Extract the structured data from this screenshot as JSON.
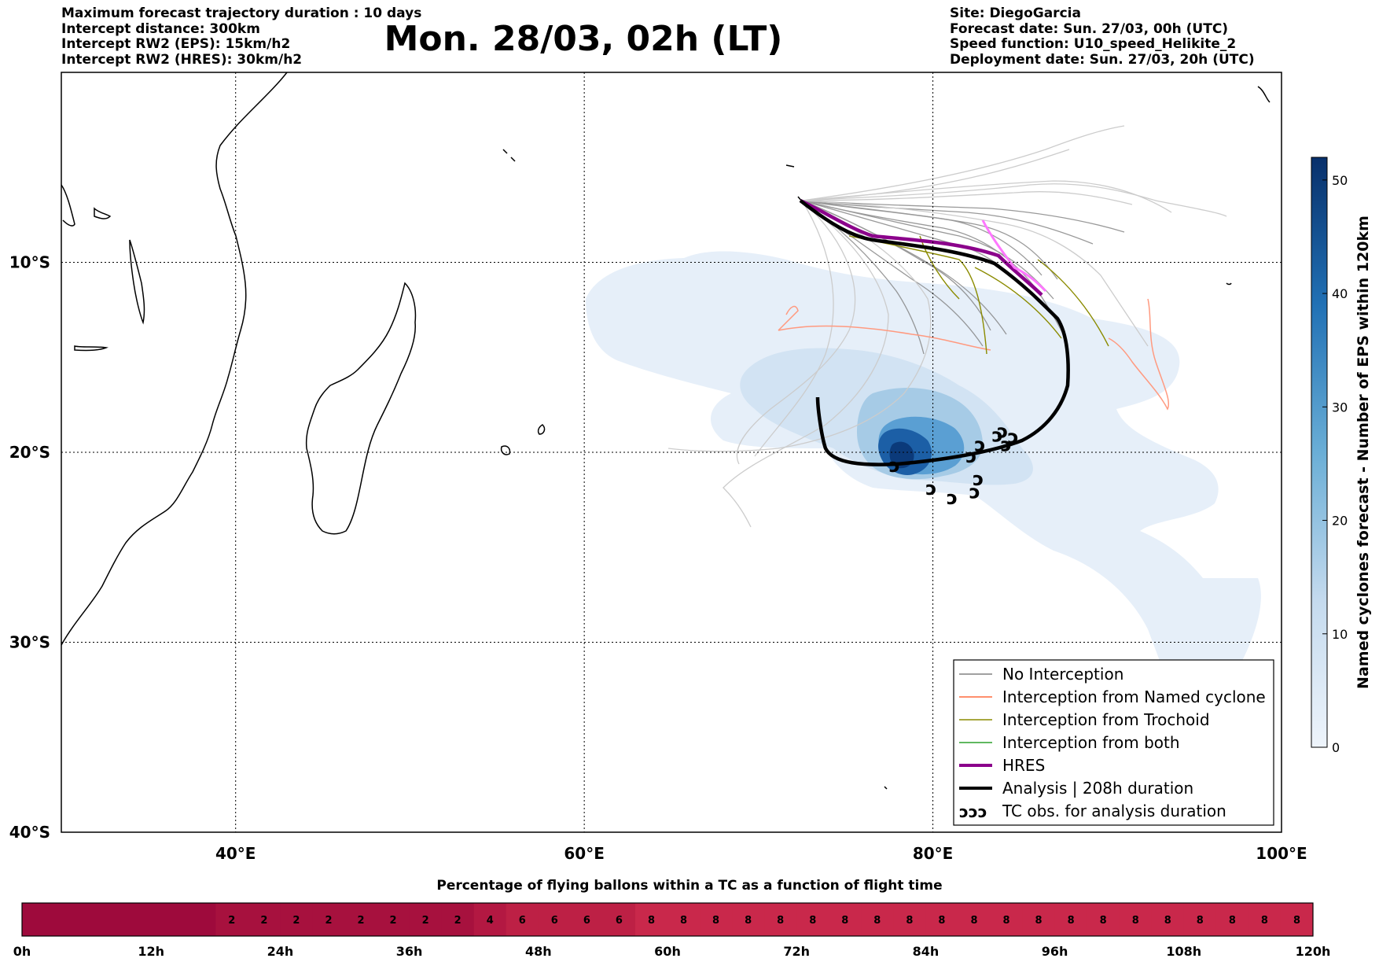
{
  "header_left": [
    "Maximum forecast trajectory duration : 10 days",
    "Intercept distance: 300km",
    "Intercept RW2 (EPS):  15km/h2",
    "Intercept RW2 (HRES): 30km/h2"
  ],
  "title": "Mon. 28/03, 02h (LT)",
  "header_right": [
    "Site: DiegoGarcia",
    "Forecast date: Sun. 27/03, 00h (UTC)",
    "Speed function: U10_speed_Helikite_2",
    "Deployment date: Sun. 27/03, 20h (UTC)"
  ],
  "map": {
    "lon_range": [
      30,
      100
    ],
    "lat_range": [
      -40,
      0
    ],
    "lon_ticks": [
      "40°E",
      "60°E",
      "80°E",
      "100°E"
    ],
    "lat_ticks": [
      "10°S",
      "20°S",
      "30°S",
      "40°S"
    ],
    "gridlines": true,
    "colors": {
      "no_interception": "#808080",
      "named_cyclone": "#ff6a3d",
      "trochoid": "#8b8b00",
      "both": "#2ca02c",
      "hres": "#8b008b",
      "analysis": "#000000"
    },
    "tc_obs_symbol": "ↄ",
    "tc_obs_positions": [
      {
        "lon": 77.8,
        "lat": -20.7
      },
      {
        "lon": 79.9,
        "lat": -21.9
      },
      {
        "lon": 81.1,
        "lat": -22.4
      },
      {
        "lon": 82.4,
        "lat": -22.1
      },
      {
        "lon": 82.6,
        "lat": -21.4
      },
      {
        "lon": 82.2,
        "lat": -20.2
      },
      {
        "lon": 82.7,
        "lat": -19.6
      },
      {
        "lon": 83.7,
        "lat": -19.1
      },
      {
        "lon": 84.2,
        "lat": -19.6
      },
      {
        "lon": 84.6,
        "lat": -19.2
      },
      {
        "lon": 84.0,
        "lat": -18.9
      }
    ]
  },
  "legend": {
    "items": [
      {
        "label": "No Interception",
        "color": "#808080",
        "width": 1.5
      },
      {
        "label": "Interception from Named cyclone",
        "color": "#ff6a3d",
        "width": 1.5
      },
      {
        "label": "Interception from Trochoid",
        "color": "#8b8b00",
        "width": 1.5
      },
      {
        "label": "Interception from both",
        "color": "#2ca02c",
        "width": 1.5
      },
      {
        "label": "HRES",
        "color": "#8b008b",
        "width": 4
      },
      {
        "label": "Analysis | 208h duration",
        "color": "#000000",
        "width": 4
      }
    ],
    "tc_item": {
      "symbol": "ↄↄↄ",
      "label": "TC obs. for analysis duration"
    }
  },
  "colorbar": {
    "label": "Named cyclones forecast - Number of EPS within 120km",
    "min": 0,
    "max": 52,
    "ticks": [
      "0",
      "10",
      "20",
      "30",
      "40",
      "50"
    ],
    "color_low": "#dde9f6",
    "color_high": "#08306b"
  },
  "timebar": {
    "title": "Percentage of flying ballons within a TC as a function of flight time",
    "tick_labels": [
      "0h",
      "12h",
      "24h",
      "36h",
      "48h",
      "60h",
      "72h",
      "84h",
      "96h",
      "108h",
      "120h"
    ],
    "cells": [
      "",
      "",
      "",
      "",
      "",
      "",
      "2",
      "2",
      "2",
      "2",
      "2",
      "2",
      "2",
      "2",
      "4",
      "6",
      "6",
      "6",
      "6",
      "8",
      "8",
      "8",
      "8",
      "8",
      "8",
      "8",
      "8",
      "8",
      "8",
      "8",
      "8",
      "8",
      "8",
      "8",
      "8",
      "8",
      "8",
      "8",
      "8",
      "8"
    ],
    "cell_colors": [
      "#9e0a3c",
      "#9e0a3c",
      "#9e0a3c",
      "#9e0a3c",
      "#9e0a3c",
      "#9e0a3c",
      "#a7113e",
      "#a7113e",
      "#a7113e",
      "#a7113e",
      "#a7113e",
      "#a7113e",
      "#a7113e",
      "#a7113e",
      "#b31842",
      "#bd2045",
      "#bd2045",
      "#bd2045",
      "#bd2045",
      "#c9284b",
      "#c9284b",
      "#c9284b",
      "#c9284b",
      "#c9284b",
      "#c9284b",
      "#c9284b",
      "#c9284b",
      "#c9284b",
      "#c9284b",
      "#c9284b",
      "#c9284b",
      "#c9284b",
      "#c9284b",
      "#c9284b",
      "#c9284b",
      "#c9284b",
      "#c9284b",
      "#c9284b",
      "#c9284b",
      "#c9284b"
    ]
  }
}
